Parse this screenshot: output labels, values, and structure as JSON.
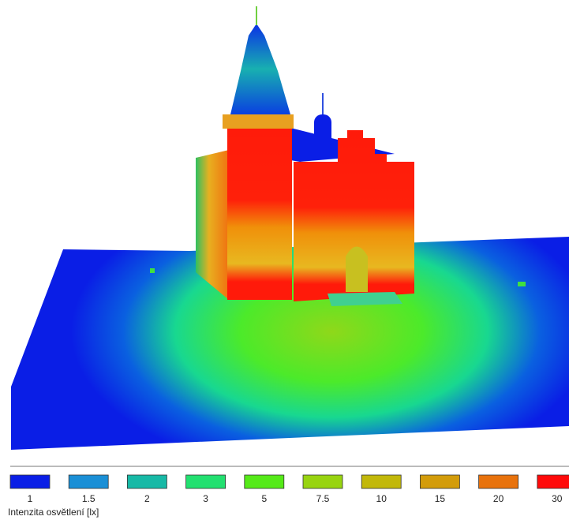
{
  "legend": {
    "title": "Intenzita osvětlení [lx]",
    "entries": [
      {
        "value": 1,
        "color": "#0a1ee6"
      },
      {
        "value": 1.5,
        "color": "#1a8fd6"
      },
      {
        "value": 2,
        "color": "#17b9a6"
      },
      {
        "value": 3,
        "color": "#22e070"
      },
      {
        "value": 5,
        "color": "#55ea18"
      },
      {
        "value": 7.5,
        "color": "#98d410"
      },
      {
        "value": 10,
        "color": "#c2b80a"
      },
      {
        "value": 15,
        "color": "#d39c0a"
      },
      {
        "value": 20,
        "color": "#e8720c"
      },
      {
        "value": 30,
        "color": "#ff0a0a"
      }
    ]
  }
}
